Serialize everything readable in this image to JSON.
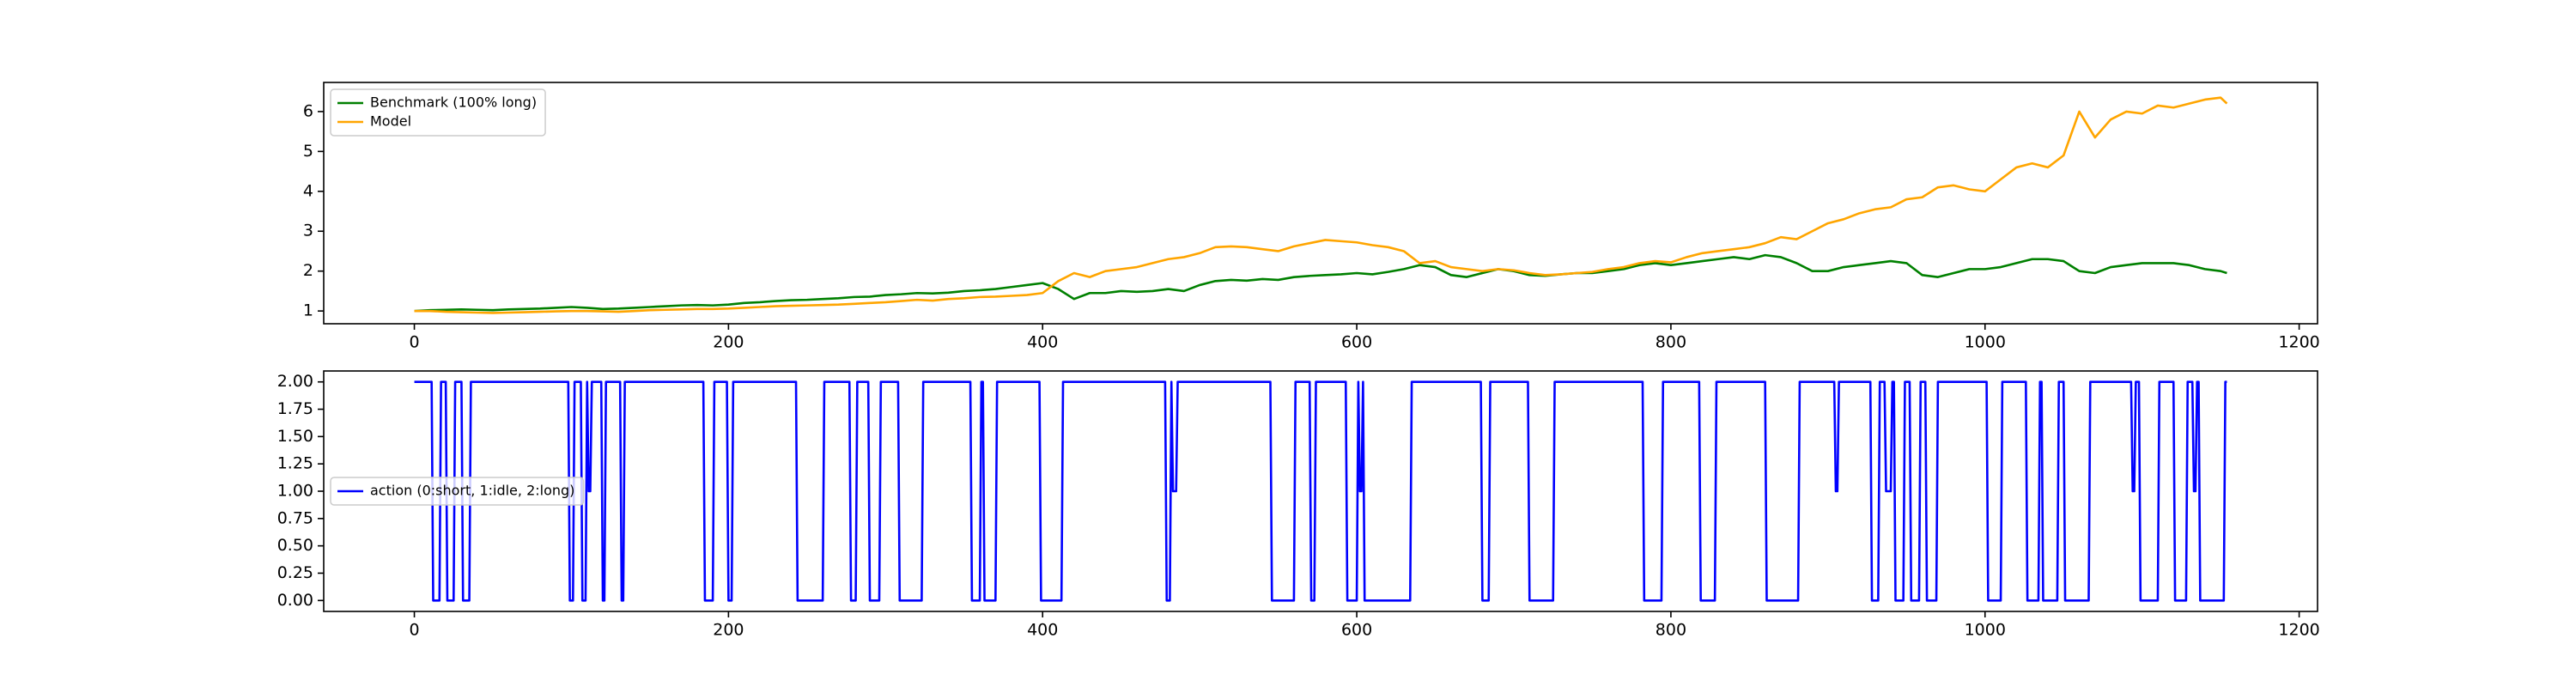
{
  "chart_data": [
    {
      "type": "line",
      "legend": "upper left",
      "xlim": [
        -57.7,
        1211.7
      ],
      "ylim": [
        0.68,
        6.73
      ],
      "xticks": [
        0,
        200,
        400,
        600,
        800,
        1000,
        1200
      ],
      "yticks": [
        1,
        2,
        3,
        4,
        5,
        6
      ],
      "x": [
        0,
        10,
        20,
        30,
        40,
        50,
        60,
        70,
        80,
        90,
        100,
        110,
        120,
        130,
        140,
        150,
        160,
        170,
        180,
        190,
        200,
        210,
        220,
        230,
        240,
        250,
        260,
        270,
        280,
        290,
        300,
        310,
        320,
        330,
        340,
        350,
        360,
        370,
        380,
        390,
        400,
        410,
        420,
        430,
        440,
        450,
        460,
        470,
        480,
        490,
        500,
        510,
        520,
        530,
        540,
        550,
        560,
        570,
        580,
        590,
        600,
        610,
        620,
        630,
        640,
        650,
        660,
        670,
        680,
        690,
        700,
        710,
        720,
        730,
        740,
        750,
        760,
        770,
        780,
        790,
        800,
        810,
        820,
        830,
        840,
        850,
        860,
        870,
        880,
        890,
        900,
        910,
        920,
        930,
        940,
        950,
        960,
        970,
        980,
        990,
        1000,
        1010,
        1020,
        1030,
        1040,
        1050,
        1060,
        1070,
        1080,
        1090,
        1100,
        1110,
        1120,
        1130,
        1140,
        1150,
        1154
      ],
      "series": [
        {
          "name": "Benchmark (100% long)",
          "color": "#008000",
          "values": [
            1.0,
            1.02,
            1.03,
            1.04,
            1.03,
            1.02,
            1.04,
            1.05,
            1.06,
            1.08,
            1.1,
            1.08,
            1.05,
            1.06,
            1.08,
            1.1,
            1.12,
            1.14,
            1.15,
            1.14,
            1.16,
            1.2,
            1.22,
            1.25,
            1.27,
            1.28,
            1.3,
            1.32,
            1.35,
            1.36,
            1.4,
            1.42,
            1.45,
            1.44,
            1.46,
            1.5,
            1.52,
            1.55,
            1.6,
            1.65,
            1.7,
            1.55,
            1.3,
            1.45,
            1.45,
            1.5,
            1.48,
            1.5,
            1.55,
            1.5,
            1.65,
            1.75,
            1.78,
            1.76,
            1.8,
            1.78,
            1.85,
            1.88,
            1.9,
            1.92,
            1.95,
            1.92,
            1.98,
            2.05,
            2.15,
            2.1,
            1.9,
            1.85,
            1.95,
            2.05,
            2.0,
            1.9,
            1.88,
            1.92,
            1.95,
            1.95,
            2.0,
            2.05,
            2.15,
            2.2,
            2.15,
            2.2,
            2.25,
            2.3,
            2.35,
            2.3,
            2.4,
            2.35,
            2.2,
            2.0,
            2.0,
            2.1,
            2.15,
            2.2,
            2.25,
            2.2,
            1.9,
            1.85,
            1.95,
            2.05,
            2.05,
            2.1,
            2.2,
            2.3,
            2.3,
            2.25,
            2.0,
            1.95,
            2.1,
            2.15,
            2.2,
            2.2,
            2.2,
            2.15,
            2.05,
            2.0,
            1.95
          ]
        },
        {
          "name": "Model",
          "color": "#ffa500",
          "values": [
            1.0,
            1.0,
            0.98,
            0.97,
            0.96,
            0.95,
            0.96,
            0.97,
            0.98,
            0.99,
            1.0,
            1.0,
            0.99,
            0.98,
            1.0,
            1.02,
            1.03,
            1.04,
            1.05,
            1.05,
            1.06,
            1.08,
            1.1,
            1.12,
            1.13,
            1.14,
            1.15,
            1.16,
            1.18,
            1.2,
            1.22,
            1.25,
            1.28,
            1.26,
            1.3,
            1.32,
            1.35,
            1.36,
            1.38,
            1.4,
            1.45,
            1.75,
            1.95,
            1.85,
            2.0,
            2.05,
            2.1,
            2.2,
            2.3,
            2.35,
            2.45,
            2.6,
            2.62,
            2.6,
            2.55,
            2.5,
            2.62,
            2.7,
            2.78,
            2.75,
            2.72,
            2.65,
            2.6,
            2.5,
            2.2,
            2.25,
            2.1,
            2.05,
            2.0,
            2.05,
            2.02,
            1.95,
            1.9,
            1.92,
            1.95,
            1.98,
            2.05,
            2.1,
            2.2,
            2.25,
            2.22,
            2.35,
            2.45,
            2.5,
            2.55,
            2.6,
            2.7,
            2.85,
            2.8,
            3.0,
            3.2,
            3.3,
            3.45,
            3.55,
            3.6,
            3.8,
            3.85,
            4.1,
            4.15,
            4.05,
            4.0,
            4.3,
            4.6,
            4.7,
            4.6,
            4.9,
            6.0,
            5.35,
            5.8,
            6.0,
            5.95,
            6.15,
            6.1,
            6.2,
            6.3,
            6.35,
            6.2
          ]
        }
      ]
    },
    {
      "type": "line",
      "legend": "center left",
      "xlim": [
        -57.7,
        1211.7
      ],
      "ylim": [
        -0.1,
        2.1
      ],
      "xticks": [
        0,
        200,
        400,
        600,
        800,
        1000,
        1200
      ],
      "yticks": [
        {
          "value": 0,
          "label": "0.00"
        },
        {
          "value": 0.25,
          "label": "0.25"
        },
        {
          "value": 0.5,
          "label": "0.50"
        },
        {
          "value": 0.75,
          "label": "0.75"
        },
        {
          "value": 1,
          "label": "1.00"
        },
        {
          "value": 1.25,
          "label": "1.25"
        },
        {
          "value": 1.5,
          "label": "1.50"
        },
        {
          "value": 1.75,
          "label": "1.75"
        },
        {
          "value": 2,
          "label": "2.00"
        }
      ],
      "x": [
        0,
        11,
        12,
        16,
        17,
        20,
        21,
        25,
        26,
        30,
        31,
        35,
        36,
        98,
        99,
        101,
        102,
        106,
        107,
        109,
        110,
        111,
        112,
        113,
        119,
        120,
        121,
        122,
        131,
        132,
        133,
        134,
        184,
        185,
        190,
        191,
        199,
        200,
        202,
        203,
        243,
        244,
        260,
        261,
        277,
        278,
        281,
        282,
        289,
        290,
        296,
        297,
        308,
        309,
        323,
        324,
        354,
        355,
        360,
        361,
        362,
        363,
        370,
        371,
        398,
        399,
        412,
        413,
        478,
        479,
        481,
        482,
        483,
        485,
        486,
        545,
        546,
        560,
        561,
        570,
        571,
        573,
        574,
        593,
        594,
        600,
        601,
        602,
        603,
        604,
        605,
        634,
        635,
        679,
        680,
        684,
        685,
        709,
        710,
        725,
        726,
        782,
        783,
        794,
        795,
        818,
        819,
        828,
        829,
        860,
        861,
        881,
        882,
        904,
        905,
        906,
        907,
        927,
        928,
        932,
        933,
        936,
        937,
        940,
        941,
        942,
        943,
        948,
        949,
        952,
        953,
        958,
        959,
        962,
        963,
        969,
        970,
        1001,
        1002,
        1010,
        1011,
        1026,
        1027,
        1034,
        1035,
        1036,
        1037,
        1046,
        1047,
        1050,
        1051,
        1066,
        1067,
        1093,
        1094,
        1095,
        1096,
        1098,
        1099,
        1110,
        1111,
        1120,
        1121,
        1128,
        1129,
        1132,
        1133,
        1134,
        1135,
        1136,
        1137,
        1152,
        1153,
        1154
      ],
      "series": [
        {
          "name": "action (0:short, 1:idle, 2:long)",
          "color": "#0000ff",
          "values": [
            2,
            2,
            0,
            0,
            2,
            2,
            0,
            0,
            2,
            2,
            0,
            0,
            2,
            2,
            0,
            0,
            2,
            2,
            0,
            0,
            2,
            1,
            1,
            2,
            2,
            0,
            0,
            2,
            2,
            0,
            0,
            2,
            2,
            0,
            0,
            2,
            2,
            0,
            0,
            2,
            2,
            0,
            0,
            2,
            2,
            0,
            0,
            2,
            2,
            0,
            0,
            2,
            2,
            0,
            0,
            2,
            2,
            0,
            0,
            2,
            2,
            0,
            0,
            2,
            2,
            0,
            0,
            2,
            2,
            0,
            0,
            2,
            1,
            1,
            2,
            2,
            0,
            0,
            2,
            2,
            0,
            0,
            2,
            2,
            0,
            0,
            2,
            1,
            1,
            2,
            0,
            0,
            2,
            2,
            0,
            0,
            2,
            2,
            0,
            0,
            2,
            2,
            0,
            0,
            2,
            2,
            0,
            0,
            2,
            2,
            0,
            0,
            2,
            2,
            1,
            1,
            2,
            2,
            0,
            0,
            2,
            2,
            1,
            1,
            2,
            2,
            0,
            0,
            2,
            2,
            0,
            0,
            2,
            2,
            0,
            0,
            2,
            2,
            0,
            0,
            2,
            2,
            0,
            0,
            2,
            2,
            0,
            0,
            2,
            2,
            0,
            0,
            2,
            2,
            1,
            1,
            2,
            2,
            0,
            0,
            2,
            2,
            0,
            0,
            2,
            2,
            1,
            1,
            2,
            2,
            0,
            0,
            2,
            2
          ]
        }
      ]
    }
  ]
}
